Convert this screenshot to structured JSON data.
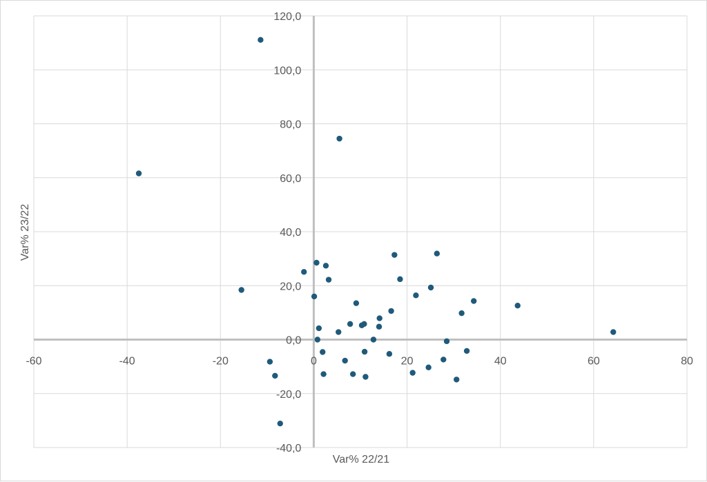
{
  "chart_data": {
    "type": "scatter",
    "title": "",
    "xlabel": "Var% 22/21",
    "ylabel": "Var% 23/22",
    "xlim": [
      -60,
      80
    ],
    "ylim": [
      -40,
      120
    ],
    "x_ticks": [
      -60,
      -40,
      -20,
      0,
      20,
      40,
      60,
      80
    ],
    "x_tick_labels": [
      "-60",
      "-40",
      "-20",
      "0",
      "20",
      "40",
      "60",
      "80"
    ],
    "y_ticks": [
      -40,
      -20,
      0,
      20,
      40,
      60,
      80,
      100,
      120
    ],
    "y_tick_labels": [
      "-40,0",
      "-20,0",
      "0,0",
      "20,0",
      "40,0",
      "60,0",
      "80,0",
      "100,0",
      "120,0"
    ],
    "grid": true,
    "legend": "none",
    "marker_color": "#1f5a7a",
    "series": [
      {
        "points": [
          {
            "x": -37.5,
            "y": 61.6
          },
          {
            "x": -11.4,
            "y": 111.1
          },
          {
            "x": -15.5,
            "y": 18.4
          },
          {
            "x": -9.4,
            "y": -8.2
          },
          {
            "x": -8.3,
            "y": -13.4
          },
          {
            "x": -7.2,
            "y": -31.1
          },
          {
            "x": -2.1,
            "y": 25.1
          },
          {
            "x": 0.1,
            "y": 16.0
          },
          {
            "x": 0.6,
            "y": 28.5
          },
          {
            "x": 0.8,
            "y": 0.0
          },
          {
            "x": 1.1,
            "y": 4.2
          },
          {
            "x": 1.9,
            "y": -4.6
          },
          {
            "x": 2.1,
            "y": -12.8
          },
          {
            "x": 2.6,
            "y": 27.4
          },
          {
            "x": 3.2,
            "y": 22.2
          },
          {
            "x": 5.3,
            "y": 2.8
          },
          {
            "x": 5.5,
            "y": 74.5
          },
          {
            "x": 6.7,
            "y": -7.8
          },
          {
            "x": 7.8,
            "y": 5.8
          },
          {
            "x": 8.4,
            "y": -12.8
          },
          {
            "x": 9.1,
            "y": 13.5
          },
          {
            "x": 10.3,
            "y": 5.3
          },
          {
            "x": 10.8,
            "y": 5.8
          },
          {
            "x": 10.9,
            "y": -4.5
          },
          {
            "x": 11.1,
            "y": -13.8
          },
          {
            "x": 12.8,
            "y": 0.0
          },
          {
            "x": 14.0,
            "y": 4.8
          },
          {
            "x": 14.1,
            "y": 7.9
          },
          {
            "x": 16.2,
            "y": -5.3
          },
          {
            "x": 16.6,
            "y": 10.6
          },
          {
            "x": 17.3,
            "y": 31.4
          },
          {
            "x": 18.5,
            "y": 22.4
          },
          {
            "x": 21.2,
            "y": -12.3
          },
          {
            "x": 21.9,
            "y": 16.4
          },
          {
            "x": 24.6,
            "y": -10.3
          },
          {
            "x": 25.1,
            "y": 19.3
          },
          {
            "x": 26.4,
            "y": 31.9
          },
          {
            "x": 27.8,
            "y": -7.4
          },
          {
            "x": 28.5,
            "y": -0.6
          },
          {
            "x": 30.6,
            "y": -14.8
          },
          {
            "x": 31.7,
            "y": 9.8
          },
          {
            "x": 32.8,
            "y": -4.2
          },
          {
            "x": 34.3,
            "y": 14.3
          },
          {
            "x": 43.7,
            "y": 12.6
          },
          {
            "x": 64.2,
            "y": 2.8
          }
        ]
      }
    ]
  }
}
